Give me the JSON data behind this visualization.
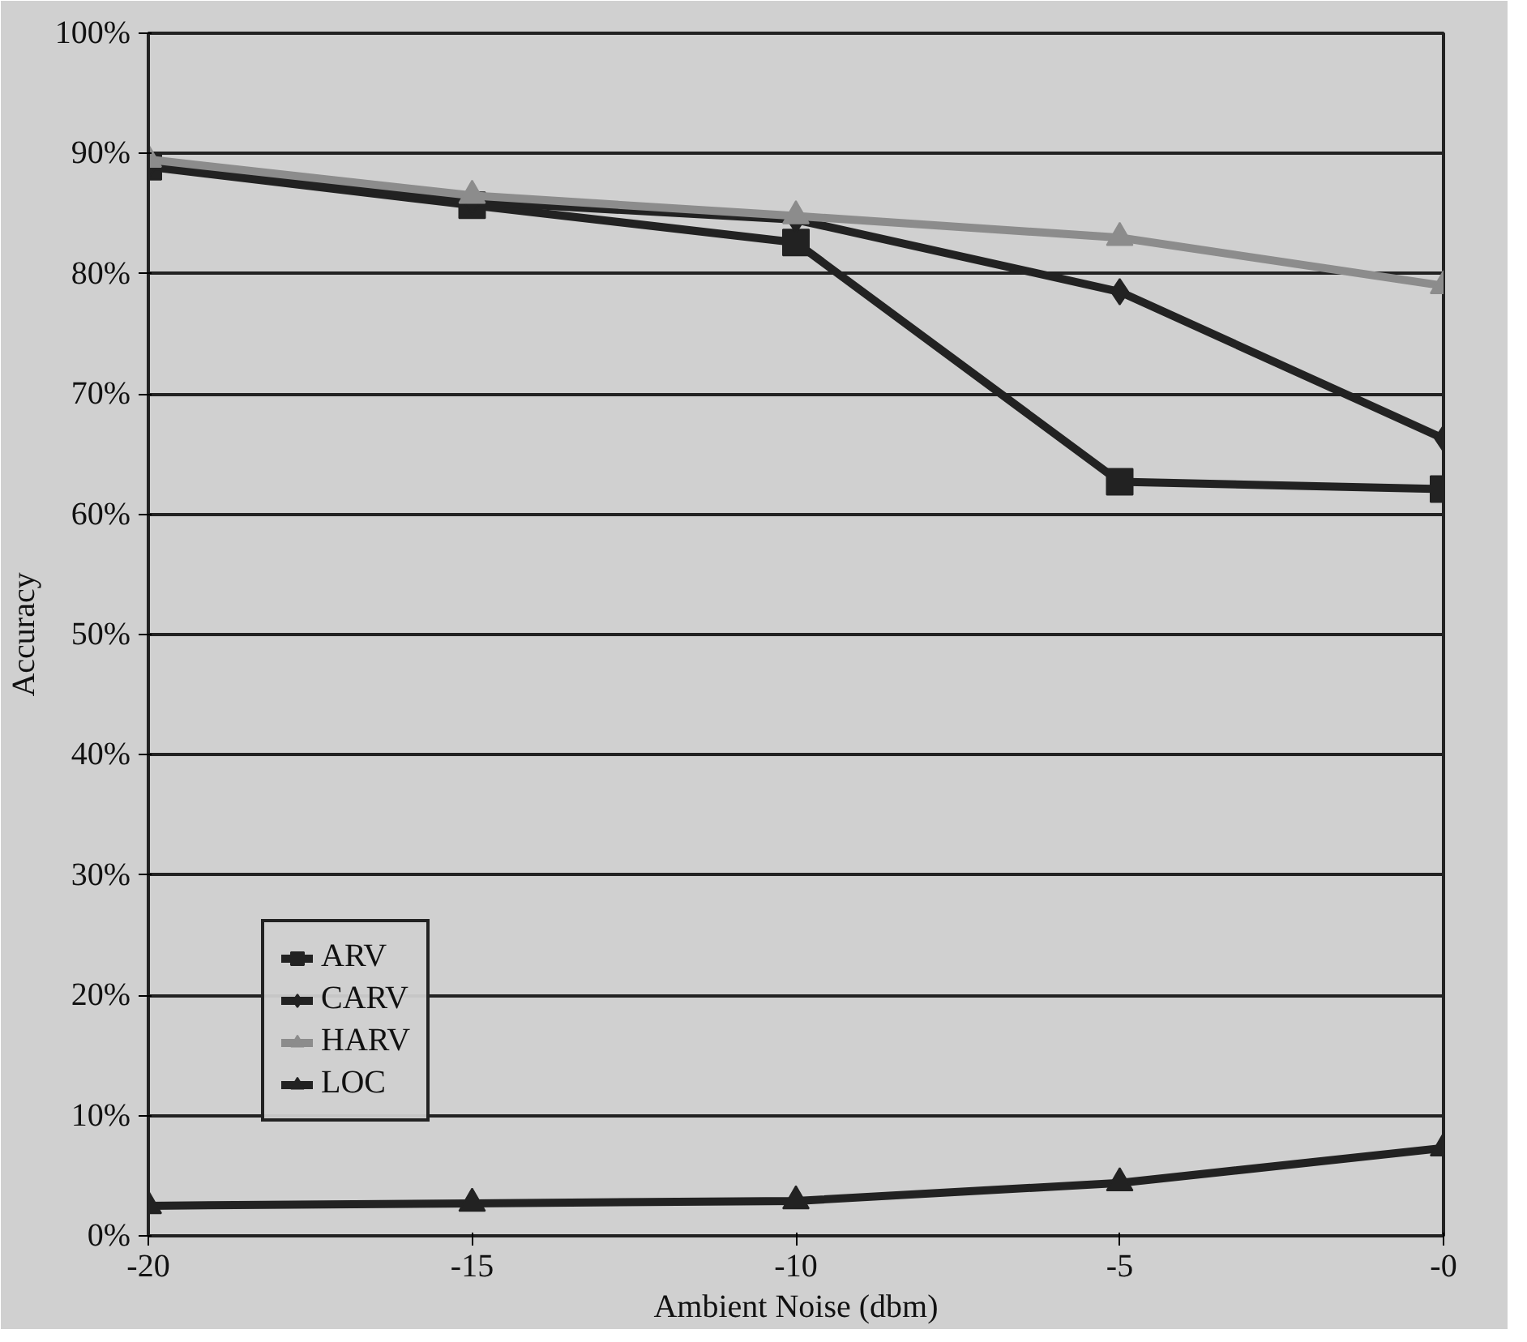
{
  "chart_data": {
    "type": "line",
    "xlabel": "Ambient Noise (dbm)",
    "ylabel": "Accuracy",
    "x": [
      -20,
      -15,
      -10,
      -5,
      0
    ],
    "series": [
      {
        "name": "ARV",
        "color": "#222222",
        "marker": "square",
        "values": [
          0.889,
          0.857,
          0.826,
          0.627,
          0.621
        ]
      },
      {
        "name": "CARV",
        "color": "#222222",
        "marker": "diamond",
        "values": [
          0.89,
          0.86,
          0.845,
          0.785,
          0.663
        ]
      },
      {
        "name": "HARV",
        "color": "#8c8c8c",
        "marker": "triangle",
        "values": [
          0.895,
          0.865,
          0.848,
          0.83,
          0.79
        ]
      },
      {
        "name": "LOC",
        "color": "#222222",
        "marker": "triangle",
        "values": [
          0.025,
          0.027,
          0.029,
          0.044,
          0.073
        ]
      }
    ],
    "xlim": [
      -20,
      0
    ],
    "xticks": [
      -20,
      -15,
      -10,
      -5,
      {
        "value": 0,
        "label": "-0"
      }
    ],
    "ylim": [
      0,
      1
    ],
    "yticks": [
      {
        "value": 0,
        "label": "0%"
      },
      {
        "value": 0.1,
        "label": "10%"
      },
      {
        "value": 0.2,
        "label": "20%"
      },
      {
        "value": 0.3,
        "label": "30%"
      },
      {
        "value": 0.4,
        "label": "40%"
      },
      {
        "value": 0.5,
        "label": "50%"
      },
      {
        "value": 0.6,
        "label": "60%"
      },
      {
        "value": 0.7,
        "label": "70%"
      },
      {
        "value": 0.8,
        "label": "80%"
      },
      {
        "value": 0.9,
        "label": "90%"
      },
      {
        "value": 1,
        "label": "100%"
      }
    ],
    "grid": "y",
    "legend": "bottom left",
    "line_style": "solid"
  }
}
